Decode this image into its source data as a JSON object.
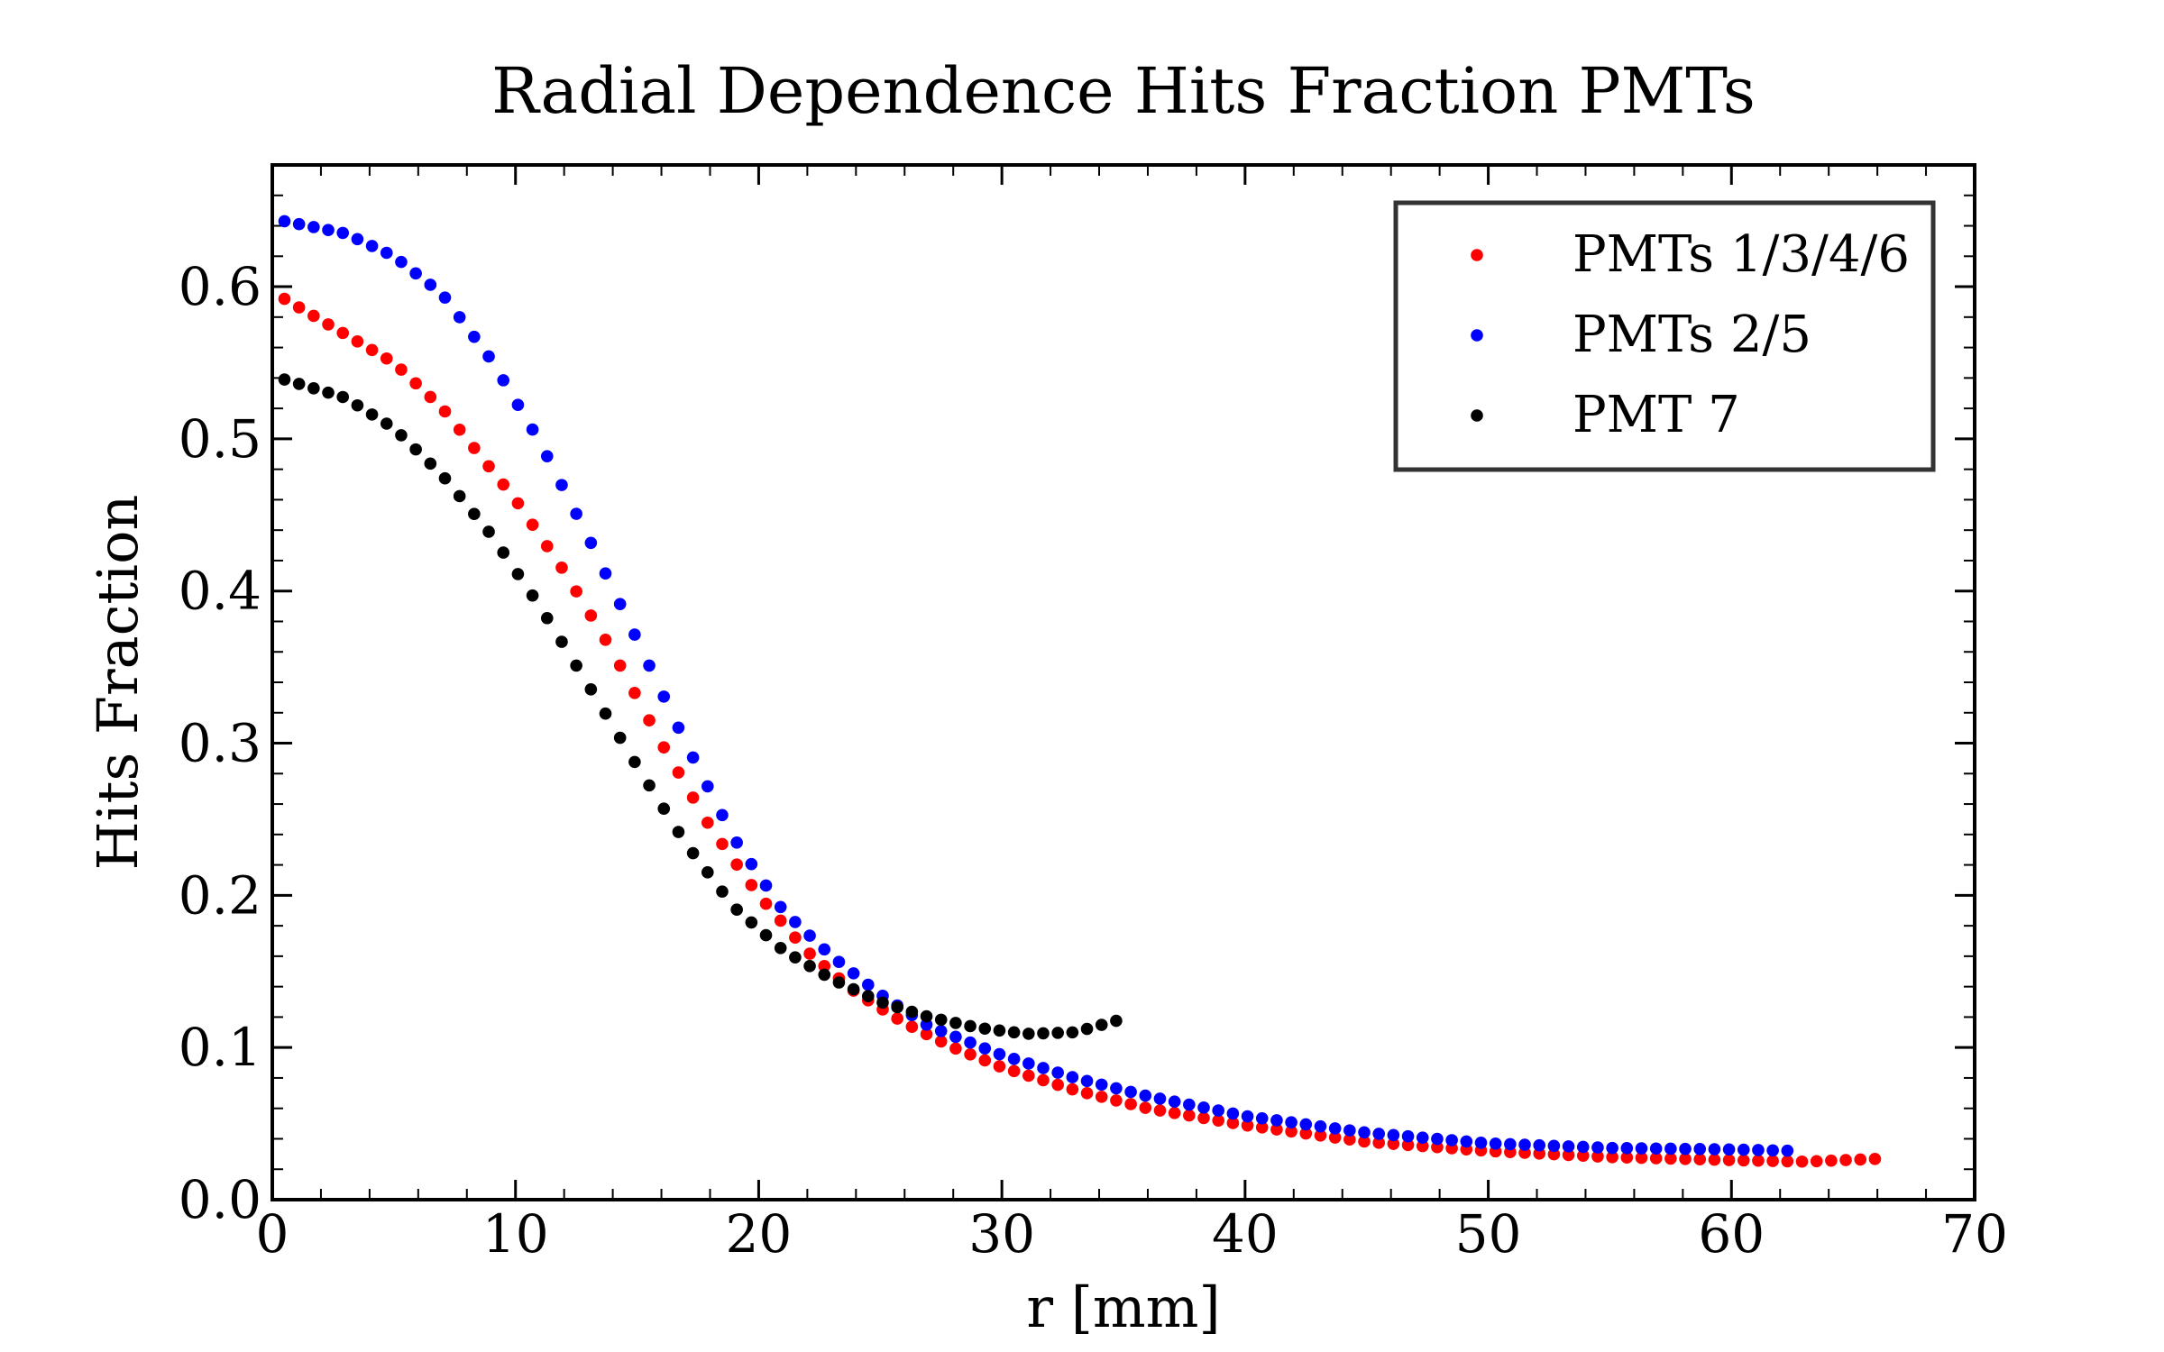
{
  "chart_data": {
    "type": "scatter",
    "title": "Radial Dependence Hits Fraction PMTs",
    "xlabel": "r [mm]",
    "ylabel": "Hits Fraction",
    "xlim": [
      0,
      70
    ],
    "ylim": [
      0.0,
      0.68
    ],
    "x_ticks": [
      "0",
      "10",
      "20",
      "30",
      "40",
      "50",
      "60",
      "70"
    ],
    "y_ticks": [
      "0.0",
      "0.1",
      "0.2",
      "0.3",
      "0.4",
      "0.5",
      "0.6"
    ],
    "grid": false,
    "legend_position": "top-right",
    "series": [
      {
        "name": "PMTs 1/3/4/6",
        "color": "#ff0000",
        "x_start": 0.5,
        "x_end": 66.3,
        "x_step": 0.6,
        "points": [
          [
            0.5,
            0.592
          ],
          [
            5,
            0.55
          ],
          [
            7,
            0.52
          ],
          [
            8,
            0.5
          ],
          [
            10,
            0.46
          ],
          [
            12,
            0.413
          ],
          [
            14,
            0.36
          ],
          [
            16,
            0.3
          ],
          [
            18,
            0.245
          ],
          [
            20,
            0.2
          ],
          [
            22,
            0.163
          ],
          [
            24,
            0.136
          ],
          [
            26,
            0.116
          ],
          [
            28,
            0.1
          ],
          [
            30,
            0.087
          ],
          [
            33,
            0.072
          ],
          [
            36,
            0.06
          ],
          [
            40,
            0.049
          ],
          [
            45,
            0.038
          ],
          [
            50,
            0.032
          ],
          [
            55,
            0.028
          ],
          [
            60,
            0.026
          ],
          [
            63,
            0.025
          ],
          [
            66.3,
            0.027
          ]
        ]
      },
      {
        "name": "PMTs 2/5",
        "color": "#0000ff",
        "x_start": 0.5,
        "x_end": 62.8,
        "x_step": 0.6,
        "points": [
          [
            0.5,
            0.643
          ],
          [
            3,
            0.635
          ],
          [
            5,
            0.62
          ],
          [
            7,
            0.595
          ],
          [
            9,
            0.552
          ],
          [
            11,
            0.498
          ],
          [
            13,
            0.435
          ],
          [
            15,
            0.368
          ],
          [
            17,
            0.3
          ],
          [
            19,
            0.237
          ],
          [
            21,
            0.19
          ],
          [
            23,
            0.16
          ],
          [
            25,
            0.135
          ],
          [
            27,
            0.114
          ],
          [
            30,
            0.095
          ],
          [
            33,
            0.08
          ],
          [
            36,
            0.068
          ],
          [
            40,
            0.055
          ],
          [
            45,
            0.044
          ],
          [
            50,
            0.037
          ],
          [
            55,
            0.034
          ],
          [
            60,
            0.033
          ],
          [
            62.8,
            0.032
          ]
        ]
      },
      {
        "name": "PMT 7",
        "color": "#000000",
        "x_start": 0.5,
        "x_end": 34.8,
        "x_step": 0.6,
        "points": [
          [
            0.5,
            0.539
          ],
          [
            3,
            0.527
          ],
          [
            5,
            0.507
          ],
          [
            7,
            0.476
          ],
          [
            9,
            0.437
          ],
          [
            11,
            0.39
          ],
          [
            13,
            0.338
          ],
          [
            15,
            0.285
          ],
          [
            17,
            0.234
          ],
          [
            19,
            0.192
          ],
          [
            21,
            0.164
          ],
          [
            23,
            0.145
          ],
          [
            25,
            0.13
          ],
          [
            27,
            0.12
          ],
          [
            29,
            0.113
          ],
          [
            31,
            0.109
          ],
          [
            33,
            0.11
          ],
          [
            34.8,
            0.118
          ]
        ]
      }
    ]
  }
}
